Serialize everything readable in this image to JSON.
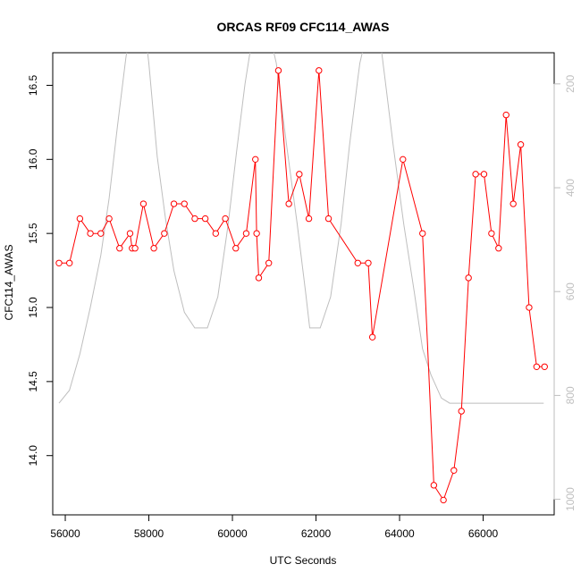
{
  "chart_data": {
    "type": "line",
    "title": "ORCAS RF09 CFC114_AWAS",
    "xlabel": "UTC Seconds",
    "ylabel": "CFC114_AWAS",
    "xlim": [
      55700,
      67700
    ],
    "ylim": [
      13.6,
      16.72
    ],
    "xticks": [
      56000,
      58000,
      60000,
      62000,
      64000,
      66000
    ],
    "yticks": [
      14.0,
      14.5,
      15.0,
      15.5,
      16.0,
      16.5
    ],
    "ytick_labels": [
      "14.0",
      "14.5",
      "15.0",
      "15.5",
      "16.0",
      "16.5"
    ],
    "y2lim": [
      1030,
      140
    ],
    "y2ticks": [
      200,
      400,
      600,
      800,
      1000
    ],
    "series": [
      {
        "role": "cfc114",
        "color": "#ff0000",
        "marker": "open-circle",
        "points": [
          [
            55850,
            15.3
          ],
          [
            56100,
            15.3
          ],
          [
            56350,
            15.6
          ],
          [
            56600,
            15.5
          ],
          [
            56850,
            15.5
          ],
          [
            57050,
            15.6
          ],
          [
            57300,
            15.4
          ],
          [
            57550,
            15.5
          ],
          [
            57600,
            15.4
          ],
          [
            57670,
            15.4
          ],
          [
            57870,
            15.7
          ],
          [
            58120,
            15.4
          ],
          [
            58370,
            15.5
          ],
          [
            58600,
            15.7
          ],
          [
            58850,
            15.7
          ],
          [
            59100,
            15.6
          ],
          [
            59350,
            15.6
          ],
          [
            59600,
            15.5
          ],
          [
            59830,
            15.6
          ],
          [
            60080,
            15.4
          ],
          [
            60330,
            15.5
          ],
          [
            60550,
            16.0
          ],
          [
            60580,
            15.5
          ],
          [
            60630,
            15.2
          ],
          [
            60870,
            15.3
          ],
          [
            61100,
            16.6
          ],
          [
            61350,
            15.7
          ],
          [
            61600,
            15.9
          ],
          [
            61830,
            15.6
          ],
          [
            62070,
            16.6
          ],
          [
            62300,
            15.6
          ],
          [
            63000,
            15.3
          ],
          [
            63250,
            15.3
          ],
          [
            63350,
            14.8
          ],
          [
            64080,
            16.0
          ],
          [
            64550,
            15.5
          ],
          [
            64820,
            13.8
          ],
          [
            65050,
            13.7
          ],
          [
            65300,
            13.9
          ],
          [
            65480,
            14.3
          ],
          [
            65650,
            15.2
          ],
          [
            65820,
            15.9
          ],
          [
            66020,
            15.9
          ],
          [
            66200,
            15.5
          ],
          [
            66370,
            15.4
          ],
          [
            66550,
            16.3
          ],
          [
            66720,
            15.7
          ],
          [
            66900,
            16.1
          ],
          [
            67100,
            15.0
          ],
          [
            67280,
            14.6
          ],
          [
            67470,
            14.6
          ]
        ]
      },
      {
        "role": "altitude-profile",
        "color": "#bebebe",
        "axis": "right",
        "points": [
          [
            55850,
            815
          ],
          [
            56100,
            790
          ],
          [
            56350,
            720
          ],
          [
            56600,
            630
          ],
          [
            56850,
            530
          ],
          [
            57050,
            420
          ],
          [
            57250,
            280
          ],
          [
            57450,
            150
          ],
          [
            57500,
            125
          ],
          [
            57950,
            125
          ],
          [
            58000,
            160
          ],
          [
            58200,
            340
          ],
          [
            58400,
            460
          ],
          [
            58600,
            560
          ],
          [
            58850,
            640
          ],
          [
            59100,
            670
          ],
          [
            59400,
            670
          ],
          [
            59650,
            610
          ],
          [
            59900,
            470
          ],
          [
            60100,
            330
          ],
          [
            60300,
            200
          ],
          [
            60400,
            150
          ],
          [
            60450,
            125
          ],
          [
            60950,
            125
          ],
          [
            61050,
            160
          ],
          [
            61300,
            320
          ],
          [
            61550,
            470
          ],
          [
            61750,
            600
          ],
          [
            61850,
            670
          ],
          [
            62100,
            670
          ],
          [
            62350,
            610
          ],
          [
            62600,
            470
          ],
          [
            62800,
            320
          ],
          [
            63000,
            190
          ],
          [
            63050,
            160
          ],
          [
            63150,
            125
          ],
          [
            63550,
            125
          ],
          [
            63650,
            190
          ],
          [
            63850,
            320
          ],
          [
            64100,
            470
          ],
          [
            64350,
            600
          ],
          [
            64550,
            710
          ],
          [
            64750,
            760
          ],
          [
            65000,
            805
          ],
          [
            65200,
            815
          ],
          [
            67450,
            815
          ]
        ]
      }
    ]
  }
}
